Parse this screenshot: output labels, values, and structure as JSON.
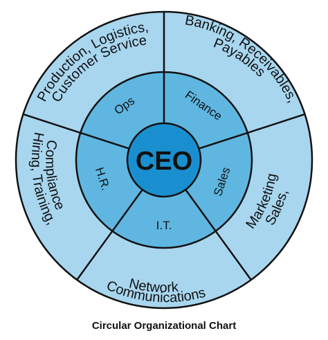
{
  "colors": {
    "outer_ring": "#a8d6ef",
    "inner_ring": "#5fb6e1",
    "center": "#1a8fcf",
    "stroke": "#111111"
  },
  "center": {
    "label": "CEO"
  },
  "inner_ring": [
    {
      "id": "ops",
      "label": "Ops"
    },
    {
      "id": "finance",
      "label": "Finance"
    },
    {
      "id": "sales",
      "label": "Sales"
    },
    {
      "id": "it",
      "label": "I.T."
    },
    {
      "id": "hr",
      "label": "H.R."
    }
  ],
  "outer_ring": [
    {
      "id": "operations",
      "lines": [
        "Production, Logistics,",
        "Customer Service"
      ]
    },
    {
      "id": "finance",
      "lines": [
        "Banking, Receivables,",
        "Payables"
      ]
    },
    {
      "id": "sales",
      "lines": [
        "Sales,",
        "Marketing"
      ]
    },
    {
      "id": "it",
      "lines": [
        "Network",
        "Communications"
      ]
    },
    {
      "id": "hr",
      "lines": [
        "Hiring, Training,",
        "Compliance"
      ]
    }
  ],
  "caption": "Circular Organizational Chart"
}
